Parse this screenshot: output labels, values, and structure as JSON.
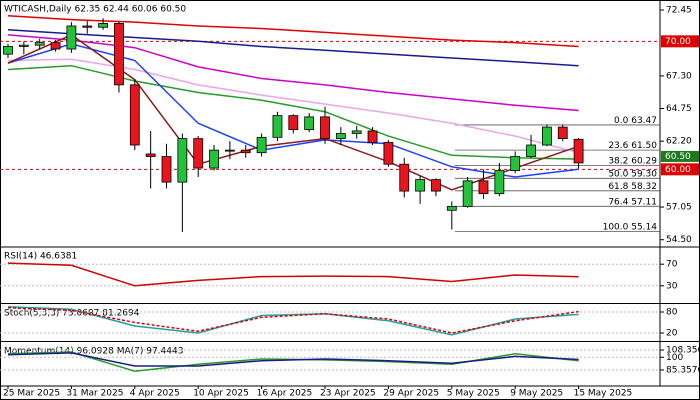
{
  "chart_data": [
    {
      "type": "candlestick",
      "title": "WTICASH,Daily 62.35 62.44 60.06 60.50",
      "categories": [
        "25 Mar 2025",
        null,
        null,
        null,
        "31 Mar 2025",
        null,
        null,
        null,
        "4 Apr 2025",
        null,
        null,
        null,
        "10 Apr 2025",
        null,
        null,
        null,
        "16 Apr 2025",
        null,
        null,
        null,
        "23 Apr 2025",
        null,
        null,
        null,
        "29 Apr 2025",
        null,
        null,
        null,
        "5 May 2025",
        null,
        null,
        null,
        "9 May 2025",
        null,
        null,
        null,
        "15 May 2025"
      ],
      "open": [
        69.0,
        69.6,
        69.7,
        69.9,
        69.4,
        71.2,
        71.1,
        71.4,
        66.6,
        61.2,
        61.0,
        59.0,
        62.4,
        60.1,
        61.5,
        61.5,
        61.3,
        62.5,
        64.2,
        63.1,
        64.1,
        62.4,
        62.8,
        63.0,
        62.1,
        60.4,
        58.3,
        59.2,
        56.8,
        57.1,
        59.1,
        58.1,
        59.9,
        61.0,
        61.9,
        63.3,
        62.35
      ],
      "high": [
        69.8,
        70.0,
        70.2,
        70.1,
        71.5,
        71.6,
        71.8,
        71.6,
        67.0,
        63.0,
        62.0,
        62.8,
        62.6,
        61.9,
        62.2,
        61.9,
        62.8,
        64.5,
        64.3,
        64.4,
        64.9,
        63.3,
        63.4,
        63.3,
        62.3,
        60.9,
        59.5,
        59.3,
        57.5,
        59.4,
        60.0,
        60.5,
        61.4,
        62.7,
        63.5,
        63.5,
        62.44
      ],
      "low": [
        68.7,
        69.0,
        69.4,
        69.2,
        69.1,
        70.6,
        70.9,
        66.0,
        61.5,
        58.5,
        58.5,
        55.1,
        59.4,
        59.9,
        60.8,
        60.9,
        61.0,
        62.2,
        62.8,
        62.9,
        62.0,
        61.9,
        62.4,
        61.9,
        60.2,
        57.8,
        57.3,
        57.9,
        55.3,
        57.0,
        57.7,
        57.9,
        59.7,
        60.9,
        61.8,
        62.2,
        60.06
      ],
      "close": [
        69.6,
        69.7,
        69.9,
        69.4,
        71.2,
        71.1,
        71.4,
        66.6,
        61.9,
        61.0,
        59.0,
        62.4,
        60.1,
        61.5,
        61.5,
        61.3,
        62.5,
        64.2,
        63.1,
        64.1,
        62.4,
        62.8,
        63.0,
        62.1,
        60.4,
        58.3,
        59.2,
        58.3,
        57.1,
        59.1,
        58.1,
        59.9,
        61.0,
        61.9,
        63.3,
        62.4,
        60.5
      ],
      "up_color": "#22c33a",
      "down_color": "#e8141e",
      "series": [
        {
          "color": "#e00000",
          "x": [
            0,
            4,
            8,
            12,
            16,
            20,
            24,
            28,
            32,
            36
          ],
          "values": [
            72.0,
            71.7,
            71.5,
            71.2,
            71.0,
            70.7,
            70.4,
            70.1,
            69.9,
            69.6
          ]
        },
        {
          "color": "#1a1a8c",
          "x": [
            0,
            4,
            8,
            12,
            16,
            20,
            24,
            28,
            32,
            36
          ],
          "values": [
            70.9,
            70.6,
            70.3,
            70.0,
            69.6,
            69.3,
            69.0,
            68.7,
            68.4,
            68.1
          ]
        },
        {
          "color": "#cc00cc",
          "x": [
            0,
            4,
            8,
            12,
            16,
            20,
            24,
            28,
            32,
            36
          ],
          "values": [
            70.5,
            70.1,
            69.5,
            68.0,
            67.1,
            66.6,
            66.0,
            65.5,
            65.0,
            64.6
          ]
        },
        {
          "color": "#eaa6ea",
          "x": [
            0,
            4,
            8,
            12,
            16,
            20,
            24,
            28,
            32,
            36
          ],
          "values": [
            68.5,
            68.6,
            67.8,
            66.6,
            65.8,
            65.1,
            64.4,
            63.6,
            62.6,
            61.3
          ]
        },
        {
          "color": "#2a9a2a",
          "x": [
            0,
            4,
            8,
            12,
            16,
            20,
            24,
            28,
            32,
            36
          ],
          "values": [
            67.8,
            68.1,
            66.9,
            66.0,
            65.4,
            64.5,
            62.6,
            61.1,
            60.9,
            60.8
          ]
        },
        {
          "color": "#1f3fff",
          "x": [
            0,
            4,
            8,
            12,
            16,
            20,
            24,
            28,
            32,
            36
          ],
          "values": [
            68.3,
            69.8,
            68.5,
            63.6,
            61.5,
            62.3,
            62.0,
            60.2,
            59.4,
            60.0
          ]
        },
        {
          "color": "#8b1a1a",
          "x": [
            0,
            4,
            8,
            12,
            16,
            20,
            24,
            28,
            32,
            36
          ],
          "values": [
            68.3,
            70.5,
            67.0,
            60.4,
            61.8,
            62.4,
            60.6,
            58.4,
            60.1,
            61.8
          ]
        }
      ],
      "hlines": [
        {
          "value": 70,
          "label": "70.00",
          "color": "#e00000"
        },
        {
          "value": 60,
          "label": "60.00",
          "color": "#e00000"
        }
      ],
      "last_label": "60.50",
      "last_color": "#1f7a1f",
      "fib_levels": [
        {
          "ratio": "0.0",
          "value": 63.47,
          "label": "63.47"
        },
        {
          "ratio": "23.6",
          "value": 61.5,
          "label": "61.50"
        },
        {
          "ratio": "38.2",
          "value": 60.29,
          "label": "60.29"
        },
        {
          "ratio": "50.0",
          "value": 59.3,
          "label": "59.30"
        },
        {
          "ratio": "61.8",
          "value": 58.32,
          "label": "58.32"
        },
        {
          "ratio": "76.4",
          "value": 57.11,
          "label": "57.11"
        },
        {
          "ratio": "100.0",
          "value": 55.14,
          "label": "55.14"
        }
      ],
      "ylim": [
        54.01,
        73.23
      ],
      "yticks": [
        72.45,
        {
          "value": 67.3,
          "label": "67.30"
        },
        64.75,
        {
          "value": 62.2,
          "label": "62.20"
        },
        57.05,
        {
          "value": 54.5,
          "label": "54.50"
        }
      ]
    },
    {
      "type": "line",
      "title": "RSI(14) 46.6381",
      "ylim": [
        0,
        100
      ],
      "yticks": [
        70,
        30
      ],
      "series": [
        {
          "color": "#d00000",
          "x": [
            0,
            4,
            8,
            12,
            16,
            20,
            24,
            28,
            32,
            36
          ],
          "values": [
            72,
            68,
            30,
            40,
            47,
            48,
            47,
            38,
            50,
            46.6381
          ]
        }
      ]
    },
    {
      "type": "line",
      "title": "Stoch(5,3,3) 73.0697 81.2694",
      "ylim": [
        0,
        100
      ],
      "yticks": [
        80,
        20
      ],
      "series": [
        {
          "color": "#20a0a0",
          "x": [
            0,
            4,
            8,
            12,
            16,
            20,
            24,
            28,
            32,
            36
          ],
          "values": [
            95,
            88,
            40,
            20,
            70,
            75,
            55,
            15,
            60,
            73.0697
          ]
        },
        {
          "color": "#e00000",
          "style": "dashed",
          "x": [
            0,
            4,
            8,
            12,
            16,
            20,
            24,
            28,
            32,
            36
          ],
          "values": [
            92,
            85,
            50,
            25,
            65,
            75,
            60,
            20,
            55,
            81.2694
          ]
        }
      ]
    },
    {
      "type": "line",
      "title": "Momentum(14) 96.0928 MA(7) 97.4443",
      "ylim": [
        68.1,
        116.4
      ],
      "yticks": [
        108.3562,
        100,
        85.3576
      ],
      "series": [
        {
          "color": "#2a9a2a",
          "x": [
            0,
            4,
            8,
            12,
            16,
            20,
            24,
            28,
            32,
            36
          ],
          "values": [
            104,
            106,
            84,
            92,
            98,
            97,
            95,
            92,
            104,
            96.0928
          ]
        },
        {
          "color": "#1a1a8c",
          "x": [
            0,
            4,
            8,
            12,
            16,
            20,
            24,
            28,
            32,
            36
          ],
          "values": [
            103,
            105,
            90,
            90,
            96,
            98,
            96,
            93,
            101,
            97.4443
          ]
        }
      ]
    }
  ]
}
